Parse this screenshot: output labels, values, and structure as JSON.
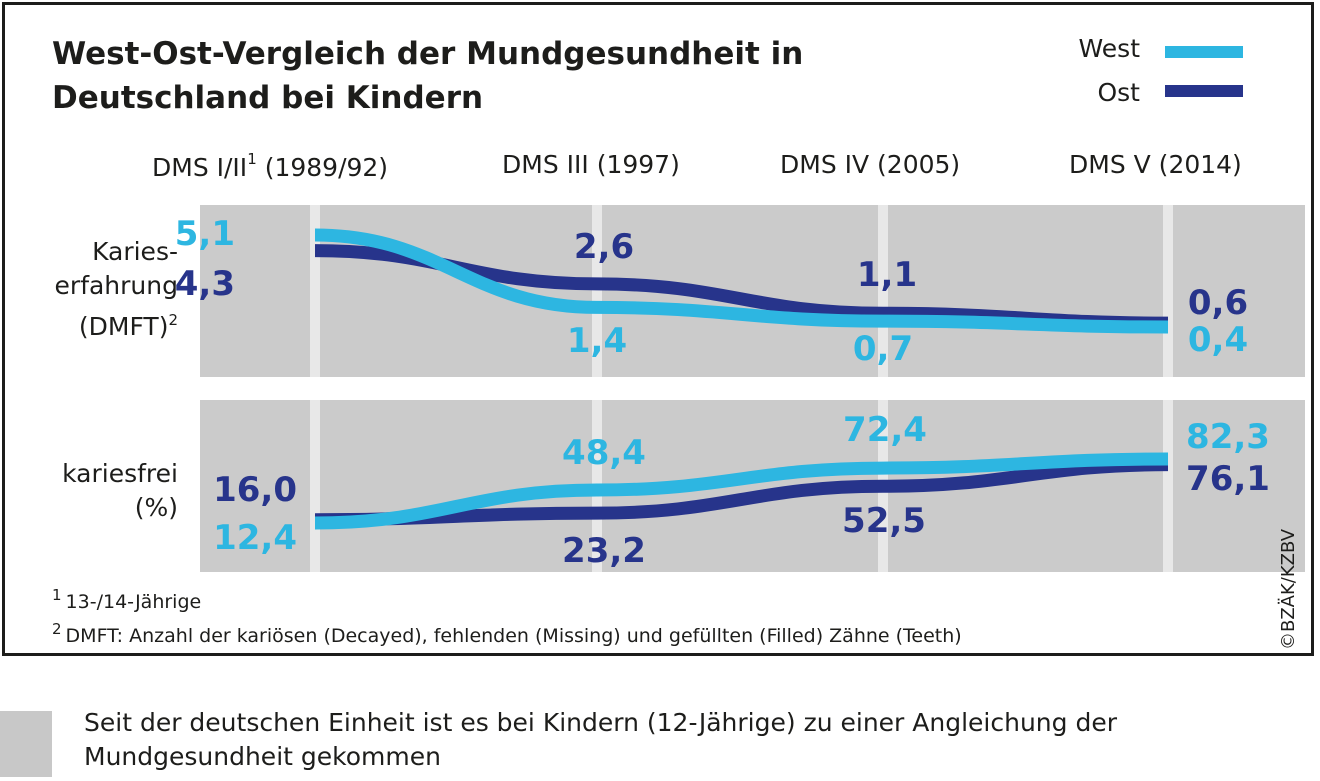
{
  "title": "West-Ost-Vergleich der Mundgesundheit in Deutschland bei Kindern",
  "legend": {
    "west": "West",
    "ost": "Ost"
  },
  "colors": {
    "west": "#2db6e1",
    "ost": "#27348b",
    "panel": "#cbcbcb",
    "divider": "#e8e8e8",
    "text": "#1d1d1b"
  },
  "headers": {
    "h1": "DMS I/II",
    "h1_sup": "1",
    "h1_year": "(1989/92)",
    "h2": "DMS III (1997)",
    "h3": "DMS IV (2005)",
    "h4": "DMS V (2014)"
  },
  "rows": {
    "dmft_line1": "Karies-",
    "dmft_line2": "erfahrung",
    "dmft_line3": "(DMFT)",
    "dmft_sup": "2",
    "free_line1": "kariesfrei",
    "free_line2": "(%)"
  },
  "footnotes": {
    "f1_mark": "1",
    "f1": "13-/14-Jährige",
    "f2_mark": "2",
    "f2": "DMFT: Anzahl der kariösen (Decayed), fehlenden (Missing) und gefüllten (Filled) Zähne (Teeth)"
  },
  "credit": "©BZÄK/KZBV",
  "caption": "Seit der deutschen Einheit ist es bei Kindern (12-Jährige) zu einer Angleichung der Mundgesundheit gekommen",
  "chart_data": [
    {
      "type": "line",
      "title": "Karieserfahrung (DMFT)",
      "categories": [
        "DMS I/II (1989/92)",
        "DMS III (1997)",
        "DMS IV (2005)",
        "DMS V (2014)"
      ],
      "series": [
        {
          "name": "West",
          "values": [
            5.1,
            1.4,
            0.7,
            0.4
          ],
          "labels": [
            "5,1",
            "1,4",
            "0,7",
            "0,4"
          ]
        },
        {
          "name": "Ost",
          "values": [
            4.3,
            2.6,
            1.1,
            0.6
          ],
          "labels": [
            "4,3",
            "2,6",
            "1,1",
            "0,6"
          ]
        }
      ]
    },
    {
      "type": "line",
      "title": "kariesfrei (%)",
      "categories": [
        "DMS I/II (1989/92)",
        "DMS III (1997)",
        "DMS IV (2005)",
        "DMS V (2014)"
      ],
      "series": [
        {
          "name": "West",
          "values": [
            12.4,
            48.4,
            72.4,
            82.3
          ],
          "labels": [
            "12,4",
            "48,4",
            "72,4",
            "82,3"
          ]
        },
        {
          "name": "Ost",
          "values": [
            16.0,
            23.2,
            52.5,
            76.1
          ],
          "labels": [
            "16,0",
            "23,2",
            "52,5",
            "76,1"
          ]
        }
      ]
    }
  ]
}
